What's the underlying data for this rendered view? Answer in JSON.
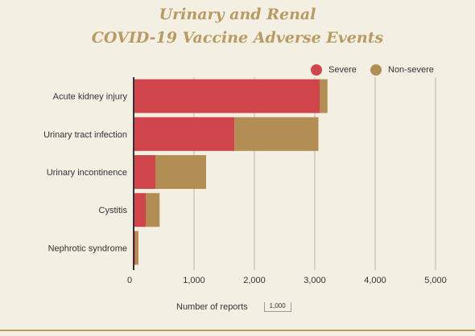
{
  "header": {
    "title_line1": "Urinary and Renal",
    "title_line2": "COVID-19 Vaccine Adverse Events"
  },
  "legend": {
    "severe_label": "Severe",
    "nonsevere_label": "Non-severe",
    "severe_color": "#d0454c",
    "nonsevere_color": "#b38e54"
  },
  "footer": {
    "axis_title": "Number of reports",
    "scale_label": "1,000"
  },
  "chart_data": {
    "type": "bar",
    "orientation": "horizontal",
    "stacked": true,
    "categories": [
      "Acute kidney injury",
      "Urinary tract infection",
      "Urinary incontinence",
      "Cystitis",
      "Nephrotic syndrome"
    ],
    "series": [
      {
        "name": "Severe",
        "color": "#d0454c",
        "values": [
          3080,
          1670,
          360,
          200,
          30
        ]
      },
      {
        "name": "Non-severe",
        "color": "#b38e54",
        "values": [
          130,
          1390,
          840,
          230,
          50
        ]
      }
    ],
    "xlabel": "Number of reports",
    "xlim": [
      0,
      5000
    ],
    "xticks": [
      0,
      1000,
      2000,
      3000,
      4000,
      5000
    ],
    "xtick_labels": [
      "0",
      "1,000",
      "2,000",
      "3,000",
      "4,000",
      "5,000"
    ],
    "grid": true,
    "legend_position": "top-right"
  }
}
